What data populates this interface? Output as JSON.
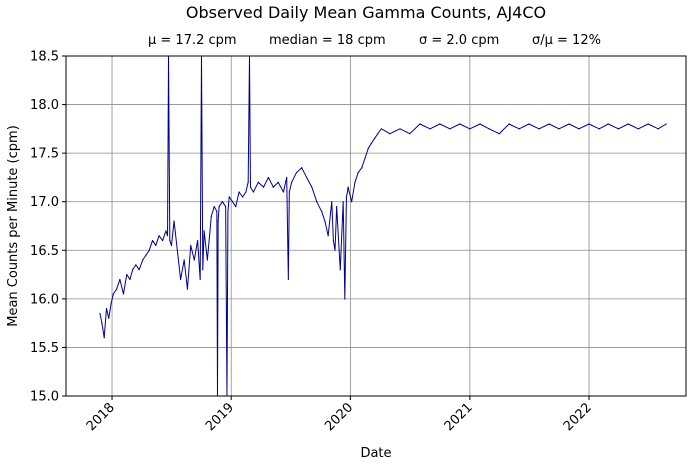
{
  "chart_data": {
    "type": "line",
    "title": "Observed Daily Mean Gamma Counts, AJ4CO",
    "subtitle": {
      "mean": "μ = 17.2 cpm",
      "median": "median = 18 cpm",
      "sigma": "σ = 2.0 cpm",
      "cv": "σ/μ = 12%"
    },
    "xlabel": "Date",
    "ylabel": "Mean Counts per Minute (cpm)",
    "xlim": [
      "2017-08-13",
      "2022-10-25"
    ],
    "ylim": [
      15.0,
      18.5
    ],
    "x_ticks": [
      "2018",
      "2019",
      "2020",
      "2021",
      "2022"
    ],
    "y_ticks": [
      "15.0",
      "15.5",
      "16.0",
      "16.5",
      "17.0",
      "17.5",
      "18.0",
      "18.5"
    ],
    "grid": true,
    "line_color": "#00008b",
    "series": [
      {
        "x": [
          "2017-11-25",
          "2017-12-01",
          "2017-12-08",
          "2017-12-15",
          "2017-12-22",
          "2017-12-29",
          "2018-01-05",
          "2018-01-15",
          "2018-01-25",
          "2018-02-05",
          "2018-02-15",
          "2018-02-25",
          "2018-03-05",
          "2018-03-15",
          "2018-03-25",
          "2018-04-05",
          "2018-04-15",
          "2018-04-25",
          "2018-05-05",
          "2018-05-15",
          "2018-05-25",
          "2018-06-05",
          "2018-06-15",
          "2018-06-20",
          "2018-06-23",
          "2018-06-27",
          "2018-07-02",
          "2018-07-10",
          "2018-07-20",
          "2018-07-30",
          "2018-08-10",
          "2018-08-20",
          "2018-08-30",
          "2018-09-10",
          "2018-09-20",
          "2018-09-28",
          "2018-10-02",
          "2018-10-06",
          "2018-10-10",
          "2018-10-20",
          "2018-11-01",
          "2018-11-10",
          "2018-11-18",
          "2018-11-20",
          "2018-11-22",
          "2018-11-25",
          "2018-12-05",
          "2018-12-15",
          "2018-12-19",
          "2018-12-22",
          "2018-12-26",
          "2019-01-05",
          "2019-01-15",
          "2019-01-25",
          "2019-02-05",
          "2019-02-15",
          "2019-02-22",
          "2019-02-26",
          "2019-03-01",
          "2019-03-10",
          "2019-03-25",
          "2019-04-10",
          "2019-04-25",
          "2019-05-10",
          "2019-05-25",
          "2019-06-10",
          "2019-06-20",
          "2019-06-25",
          "2019-06-28",
          "2019-07-05",
          "2019-07-20",
          "2019-08-05",
          "2019-08-20",
          "2019-09-05",
          "2019-09-20",
          "2019-10-05",
          "2019-10-15",
          "2019-10-25",
          "2019-11-05",
          "2019-11-10",
          "2019-11-15",
          "2019-11-20",
          "2019-12-01",
          "2019-12-10",
          "2019-12-15",
          "2019-12-20",
          "2019-12-23",
          "2019-12-25",
          "2020-01-05",
          "2020-01-15",
          "2020-01-25",
          "2020-02-05",
          "2020-02-15",
          "2020-02-25",
          "2020-03-05",
          "2020-03-15",
          "2020-03-25",
          "2020-04-05",
          "2020-05-01",
          "2020-06-01",
          "2020-07-01",
          "2020-08-01",
          "2020-09-01",
          "2020-10-01",
          "2020-11-01",
          "2020-12-01",
          "2021-01-01",
          "2021-02-01",
          "2021-03-01",
          "2021-04-01",
          "2021-05-01",
          "2021-06-01",
          "2021-07-01",
          "2021-08-01",
          "2021-09-01",
          "2021-10-01",
          "2021-11-01",
          "2021-12-01",
          "2022-01-01",
          "2022-02-01",
          "2022-03-01",
          "2022-04-01",
          "2022-05-01",
          "2022-06-01",
          "2022-07-01",
          "2022-08-01",
          "2022-08-25"
        ],
        "y": [
          15.85,
          15.75,
          15.6,
          15.9,
          15.8,
          15.95,
          16.05,
          16.1,
          16.2,
          16.05,
          16.25,
          16.2,
          16.3,
          16.35,
          16.3,
          16.4,
          16.45,
          16.5,
          16.6,
          16.55,
          16.65,
          16.6,
          16.7,
          16.65,
          18.5,
          16.6,
          16.55,
          16.8,
          16.5,
          16.2,
          16.4,
          16.1,
          16.55,
          16.4,
          16.6,
          16.2,
          18.5,
          16.3,
          16.7,
          16.4,
          16.85,
          16.95,
          16.9,
          15.0,
          16.8,
          16.95,
          17.0,
          16.95,
          15.0,
          16.9,
          17.05,
          17.0,
          16.95,
          17.1,
          17.05,
          17.1,
          17.2,
          18.5,
          17.15,
          17.1,
          17.2,
          17.15,
          17.25,
          17.15,
          17.2,
          17.1,
          17.25,
          16.2,
          17.1,
          17.2,
          17.3,
          17.35,
          17.25,
          17.15,
          17.0,
          16.9,
          16.8,
          16.65,
          17.0,
          16.6,
          16.5,
          16.95,
          16.3,
          17.0,
          16.0,
          17.05,
          17.1,
          17.15,
          17.0,
          17.2,
          17.3,
          17.35,
          17.45,
          17.55,
          17.6,
          17.65,
          17.7,
          17.75,
          17.7,
          17.75,
          17.7,
          17.8,
          17.75,
          17.8,
          17.75,
          17.8,
          17.75,
          17.8,
          17.75,
          17.7,
          17.8,
          17.75,
          17.8,
          17.75,
          17.8,
          17.75,
          17.8,
          17.75,
          17.8,
          17.75,
          17.8,
          17.75,
          17.8,
          17.75,
          17.8,
          17.75,
          17.8
        ]
      }
    ]
  }
}
